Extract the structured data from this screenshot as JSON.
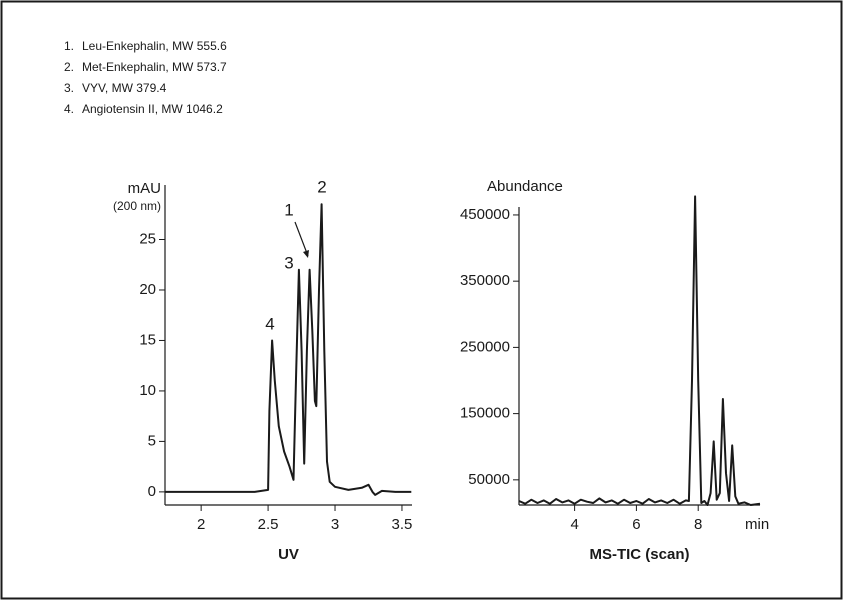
{
  "compounds": [
    "Leu-Enkephalin, MW 555.6",
    "Met-Enkephalin, MW 573.7",
    "VYV, MW 379.4",
    "Angiotensin II, MW 1046.2"
  ],
  "compound_numbers": [
    "1.",
    "2.",
    "3.",
    "4."
  ],
  "chart_data": [
    {
      "type": "line",
      "y_label": "mAU",
      "y_label_sub": "(200 nm)",
      "x_label": "UV",
      "annotations": [
        "1",
        "2",
        "3",
        "4"
      ],
      "color": "#1a1a1a",
      "x": [
        1.73,
        2.4,
        2.5,
        2.51,
        2.53,
        2.55,
        2.58,
        2.62,
        2.66,
        2.69,
        2.71,
        2.73,
        2.75,
        2.77,
        2.79,
        2.81,
        2.83,
        2.85,
        2.86,
        2.88,
        2.9,
        2.92,
        2.94,
        2.96,
        3.0,
        3.1,
        3.2,
        3.25,
        3.28,
        3.3,
        3.35,
        3.45,
        3.57
      ],
      "values": [
        0,
        0,
        0.2,
        8,
        15,
        11,
        6.5,
        4,
        2.5,
        1.2,
        12,
        22,
        14,
        2.8,
        14,
        22,
        16,
        9,
        8.5,
        20,
        28.5,
        14,
        3,
        1,
        0.5,
        0.2,
        0.4,
        0.7,
        0,
        -0.3,
        0.1,
        0,
        0
      ],
      "xlim": [
        1.73,
        3.575
      ],
      "xticks": [
        2,
        2.5,
        3,
        3.5
      ],
      "ylim": [
        -1.3,
        30.4
      ],
      "yticks": [
        0,
        5,
        10,
        15,
        20,
        25
      ]
    },
    {
      "type": "line",
      "y_label": "Abundance",
      "x_label": "MS-TIC (scan)",
      "x_unit": "min",
      "color": "#1a1a1a",
      "x": [
        2.2,
        2.4,
        2.6,
        2.8,
        3.0,
        3.2,
        3.4,
        3.6,
        3.8,
        4.0,
        4.2,
        4.4,
        4.6,
        4.8,
        5.0,
        5.2,
        5.4,
        5.6,
        5.8,
        6.0,
        6.2,
        6.4,
        6.6,
        6.8,
        7.0,
        7.2,
        7.4,
        7.6,
        7.7,
        7.8,
        7.9,
        8.0,
        8.1,
        8.2,
        8.3,
        8.4,
        8.5,
        8.6,
        8.7,
        8.8,
        8.9,
        9.0,
        9.1,
        9.2,
        9.3,
        9.5,
        9.7,
        10.0
      ],
      "values": [
        18000,
        14000,
        20000,
        15000,
        19000,
        14000,
        21000,
        16000,
        19000,
        14000,
        20000,
        17000,
        15000,
        22000,
        16000,
        19000,
        14000,
        20000,
        15000,
        18000,
        14000,
        21000,
        16000,
        19000,
        15000,
        20000,
        14000,
        19000,
        18000,
        200000,
        478000,
        200000,
        15000,
        18000,
        12000,
        30000,
        108000,
        20000,
        30000,
        172000,
        60000,
        18000,
        102000,
        25000,
        14000,
        16000,
        12000,
        14000
      ],
      "xlim": [
        2.2,
        10
      ],
      "xticks": [
        4,
        6,
        8
      ],
      "ylim": [
        12000,
        462000
      ],
      "yticks": [
        50000,
        150000,
        250000,
        350000,
        450000
      ]
    }
  ]
}
